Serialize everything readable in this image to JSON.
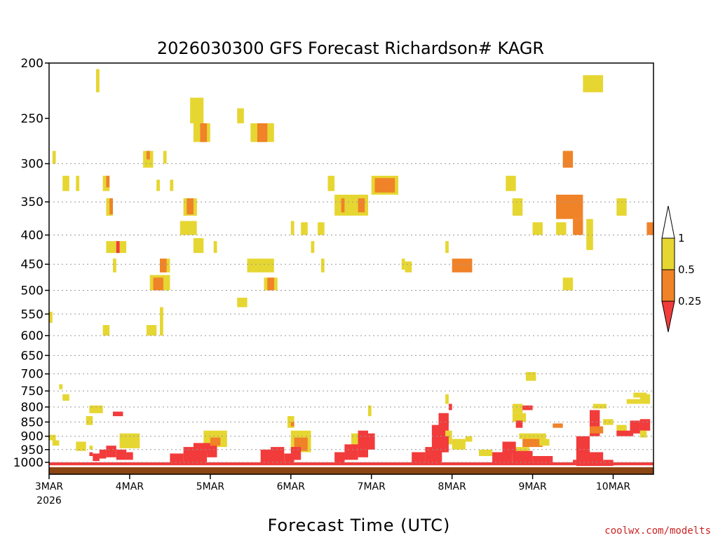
{
  "chart_data": {
    "type": "heatmap",
    "title": "2026030300 GFS Forecast Richardson# KAGR",
    "xlabel": "Forecast Time (UTC)",
    "ylabel": "",
    "credit": "coolwx.com/modelts",
    "x_start_hour": 0,
    "x_end_hour": 180,
    "x_ticks": [
      {
        "label": "3MAR",
        "hour": 0
      },
      {
        "label": "4MAR",
        "hour": 24
      },
      {
        "label": "5MAR",
        "hour": 48
      },
      {
        "label": "6MAR",
        "hour": 72
      },
      {
        "label": "7MAR",
        "hour": 96
      },
      {
        "label": "8MAR",
        "hour": 120
      },
      {
        "label": "9MAR",
        "hour": 144
      },
      {
        "label": "10MAR",
        "hour": 168
      }
    ],
    "x_year_label": "2026",
    "y_unit": "hPa",
    "y_ticks": [
      200,
      250,
      300,
      350,
      400,
      450,
      500,
      550,
      600,
      650,
      700,
      750,
      800,
      850,
      900,
      950,
      1000
    ],
    "y_gridlines": [
      300,
      350,
      400,
      450,
      500,
      550,
      600,
      650,
      700,
      750,
      800,
      850,
      900,
      950,
      1000
    ],
    "surface_pressure_hpa": 1020,
    "surface_color": "#8b4513",
    "colorbar": {
      "thresholds": [
        "1",
        "0.5",
        "0.25"
      ],
      "bins": [
        {
          "label": "Ri < 0.25",
          "color": "#f23b3b"
        },
        {
          "label": "0.25 <= Ri < 0.5",
          "color": "#f08228"
        },
        {
          "label": "0.5 <= Ri < 1",
          "color": "#e6d632"
        },
        {
          "label": "Ri >= 1",
          "color": "#ffffff"
        }
      ]
    },
    "category_colors": {
      "y": "#e6d632",
      "o": "#f08228",
      "r": "#f23b3b"
    },
    "cells": [
      {
        "c": "y",
        "h0": 14,
        "h1": 15,
        "p0": 205,
        "p1": 225
      },
      {
        "c": "y",
        "h0": 42,
        "h1": 46,
        "p0": 230,
        "p1": 255
      },
      {
        "c": "y",
        "h0": 43,
        "h1": 48,
        "p0": 255,
        "p1": 275
      },
      {
        "c": "o",
        "h0": 45,
        "h1": 47,
        "p0": 255,
        "p1": 275
      },
      {
        "c": "y",
        "h0": 56,
        "h1": 58,
        "p0": 240,
        "p1": 255
      },
      {
        "c": "y",
        "h0": 60,
        "h1": 67,
        "p0": 255,
        "p1": 275
      },
      {
        "c": "o",
        "h0": 62,
        "h1": 65,
        "p0": 255,
        "p1": 275
      },
      {
        "c": "y",
        "h0": 159,
        "h1": 165,
        "p0": 210,
        "p1": 225
      },
      {
        "c": "y",
        "h0": 1,
        "h1": 2,
        "p0": 285,
        "p1": 300
      },
      {
        "c": "y",
        "h0": 28,
        "h1": 31,
        "p0": 285,
        "p1": 305
      },
      {
        "c": "o",
        "h0": 29,
        "h1": 30,
        "p0": 285,
        "p1": 295
      },
      {
        "c": "y",
        "h0": 34,
        "h1": 35,
        "p0": 285,
        "p1": 300
      },
      {
        "c": "o",
        "h0": 153,
        "h1": 156,
        "p0": 285,
        "p1": 305
      },
      {
        "c": "y",
        "h0": 4,
        "h1": 6,
        "p0": 315,
        "p1": 335
      },
      {
        "c": "y",
        "h0": 8,
        "h1": 9,
        "p0": 315,
        "p1": 335
      },
      {
        "c": "y",
        "h0": 16,
        "h1": 18,
        "p0": 315,
        "p1": 335
      },
      {
        "c": "o",
        "h0": 17,
        "h1": 18,
        "p0": 315,
        "p1": 330
      },
      {
        "c": "y",
        "h0": 32,
        "h1": 33,
        "p0": 320,
        "p1": 335
      },
      {
        "c": "y",
        "h0": 36,
        "h1": 37,
        "p0": 320,
        "p1": 335
      },
      {
        "c": "y",
        "h0": 83,
        "h1": 85,
        "p0": 315,
        "p1": 335
      },
      {
        "c": "y",
        "h0": 96,
        "h1": 104,
        "p0": 315,
        "p1": 340
      },
      {
        "c": "o",
        "h0": 97,
        "h1": 103,
        "p0": 318,
        "p1": 337
      },
      {
        "c": "y",
        "h0": 136,
        "h1": 139,
        "p0": 315,
        "p1": 335
      },
      {
        "c": "y",
        "h0": 17,
        "h1": 19,
        "p0": 345,
        "p1": 370
      },
      {
        "c": "o",
        "h0": 18,
        "h1": 19,
        "p0": 345,
        "p1": 368
      },
      {
        "c": "y",
        "h0": 40,
        "h1": 44,
        "p0": 345,
        "p1": 370
      },
      {
        "c": "o",
        "h0": 41,
        "h1": 43,
        "p0": 345,
        "p1": 368
      },
      {
        "c": "y",
        "h0": 85,
        "h1": 95,
        "p0": 340,
        "p1": 370
      },
      {
        "c": "o",
        "h0": 87,
        "h1": 88,
        "p0": 345,
        "p1": 365
      },
      {
        "c": "o",
        "h0": 92,
        "h1": 94,
        "p0": 345,
        "p1": 365
      },
      {
        "c": "y",
        "h0": 138,
        "h1": 141,
        "p0": 345,
        "p1": 370
      },
      {
        "c": "o",
        "h0": 151,
        "h1": 159,
        "p0": 340,
        "p1": 375
      },
      {
        "c": "y",
        "h0": 169,
        "h1": 172,
        "p0": 345,
        "p1": 370
      },
      {
        "c": "y",
        "h0": 39,
        "h1": 44,
        "p0": 378,
        "p1": 400
      },
      {
        "c": "y",
        "h0": 72,
        "h1": 73,
        "p0": 378,
        "p1": 400
      },
      {
        "c": "y",
        "h0": 75,
        "h1": 77,
        "p0": 380,
        "p1": 400
      },
      {
        "c": "y",
        "h0": 80,
        "h1": 82,
        "p0": 380,
        "p1": 400
      },
      {
        "c": "y",
        "h0": 144,
        "h1": 147,
        "p0": 380,
        "p1": 400
      },
      {
        "c": "y",
        "h0": 151,
        "h1": 154,
        "p0": 380,
        "p1": 400
      },
      {
        "c": "o",
        "h0": 156,
        "h1": 159,
        "p0": 375,
        "p1": 400
      },
      {
        "c": "y",
        "h0": 160,
        "h1": 162,
        "p0": 375,
        "p1": 425
      },
      {
        "c": "o",
        "h0": 178,
        "h1": 180,
        "p0": 380,
        "p1": 400
      },
      {
        "c": "y",
        "h0": 17,
        "h1": 23,
        "p0": 410,
        "p1": 430
      },
      {
        "c": "r",
        "h0": 20,
        "h1": 21,
        "p0": 410,
        "p1": 430
      },
      {
        "c": "y",
        "h0": 43,
        "h1": 46,
        "p0": 405,
        "p1": 430
      },
      {
        "c": "y",
        "h0": 49,
        "h1": 50,
        "p0": 410,
        "p1": 430
      },
      {
        "c": "y",
        "h0": 78,
        "h1": 79,
        "p0": 410,
        "p1": 430
      },
      {
        "c": "y",
        "h0": 118,
        "h1": 119,
        "p0": 410,
        "p1": 430
      },
      {
        "c": "y",
        "h0": 59,
        "h1": 67,
        "p0": 440,
        "p1": 465
      },
      {
        "c": "y",
        "h0": 33,
        "h1": 36,
        "p0": 440,
        "p1": 465
      },
      {
        "c": "o",
        "h0": 33,
        "h1": 35,
        "p0": 440,
        "p1": 465
      },
      {
        "c": "y",
        "h0": 19,
        "h1": 20,
        "p0": 440,
        "p1": 465
      },
      {
        "c": "y",
        "h0": 81,
        "h1": 82,
        "p0": 440,
        "p1": 465
      },
      {
        "c": "y",
        "h0": 105,
        "h1": 106,
        "p0": 440,
        "p1": 460
      },
      {
        "c": "y",
        "h0": 106,
        "h1": 108,
        "p0": 445,
        "p1": 465
      },
      {
        "c": "o",
        "h0": 120,
        "h1": 126,
        "p0": 440,
        "p1": 465
      },
      {
        "c": "y",
        "h0": 30,
        "h1": 36,
        "p0": 470,
        "p1": 500
      },
      {
        "c": "o",
        "h0": 31,
        "h1": 34,
        "p0": 475,
        "p1": 500
      },
      {
        "c": "y",
        "h0": 64,
        "h1": 68,
        "p0": 475,
        "p1": 500
      },
      {
        "c": "o",
        "h0": 65,
        "h1": 67,
        "p0": 475,
        "p1": 500
      },
      {
        "c": "y",
        "h0": 153,
        "h1": 156,
        "p0": 475,
        "p1": 500
      },
      {
        "c": "y",
        "h0": 56,
        "h1": 59,
        "p0": 515,
        "p1": 535
      },
      {
        "c": "y",
        "h0": 0,
        "h1": 1,
        "p0": 545,
        "p1": 570
      },
      {
        "c": "y",
        "h0": 16,
        "h1": 18,
        "p0": 575,
        "p1": 600
      },
      {
        "c": "y",
        "h0": 29,
        "h1": 32,
        "p0": 575,
        "p1": 600
      },
      {
        "c": "y",
        "h0": 33,
        "h1": 34,
        "p0": 535,
        "p1": 600
      },
      {
        "c": "y",
        "h0": 3,
        "h1": 4,
        "p0": 730,
        "p1": 745
      },
      {
        "c": "y",
        "h0": 4,
        "h1": 6,
        "p0": 760,
        "p1": 780
      },
      {
        "c": "y",
        "h0": 142,
        "h1": 145,
        "p0": 695,
        "p1": 720
      },
      {
        "c": "y",
        "h0": 12,
        "h1": 16,
        "p0": 795,
        "p1": 820
      },
      {
        "c": "y",
        "h0": 11,
        "h1": 13,
        "p0": 830,
        "p1": 860
      },
      {
        "c": "r",
        "h0": 19,
        "h1": 22,
        "p0": 815,
        "p1": 830
      },
      {
        "c": "y",
        "h0": 95,
        "h1": 96,
        "p0": 795,
        "p1": 830
      },
      {
        "c": "y",
        "h0": 118,
        "h1": 119,
        "p0": 760,
        "p1": 790
      },
      {
        "c": "r",
        "h0": 119,
        "h1": 120,
        "p0": 790,
        "p1": 810
      },
      {
        "c": "y",
        "h0": 138,
        "h1": 141,
        "p0": 790,
        "p1": 820
      },
      {
        "c": "r",
        "h0": 141,
        "h1": 144,
        "p0": 795,
        "p1": 810
      },
      {
        "c": "y",
        "h0": 162,
        "h1": 166,
        "p0": 790,
        "p1": 805
      },
      {
        "c": "y",
        "h0": 176,
        "h1": 179,
        "p0": 760,
        "p1": 790
      },
      {
        "c": "y",
        "h0": 172,
        "h1": 176,
        "p0": 775,
        "p1": 790
      },
      {
        "c": "y",
        "h0": 174,
        "h1": 178,
        "p0": 755,
        "p1": 770
      },
      {
        "c": "y",
        "h0": 138,
        "h1": 142,
        "p0": 820,
        "p1": 850
      },
      {
        "c": "r",
        "h0": 139,
        "h1": 141,
        "p0": 845,
        "p1": 870
      },
      {
        "c": "o",
        "h0": 150,
        "h1": 153,
        "p0": 855,
        "p1": 870
      },
      {
        "c": "r",
        "h0": 161,
        "h1": 164,
        "p0": 810,
        "p1": 900
      },
      {
        "c": "y",
        "h0": 165,
        "h1": 168,
        "p0": 840,
        "p1": 860
      },
      {
        "c": "y",
        "h0": 169,
        "h1": 172,
        "p0": 860,
        "p1": 890
      },
      {
        "c": "r",
        "h0": 169,
        "h1": 174,
        "p0": 880,
        "p1": 900
      },
      {
        "c": "r",
        "h0": 173,
        "h1": 176,
        "p0": 845,
        "p1": 890
      },
      {
        "c": "r",
        "h0": 176,
        "h1": 179,
        "p0": 840,
        "p1": 880
      },
      {
        "c": "y",
        "h0": 176,
        "h1": 178,
        "p0": 880,
        "p1": 905
      },
      {
        "c": "o",
        "h0": 161,
        "h1": 165,
        "p0": 865,
        "p1": 890
      },
      {
        "c": "y",
        "h0": 0,
        "h1": 2,
        "p0": 895,
        "p1": 915
      },
      {
        "c": "y",
        "h0": 1,
        "h1": 3,
        "p0": 915,
        "p1": 935
      },
      {
        "c": "y",
        "h0": 8,
        "h1": 11,
        "p0": 920,
        "p1": 955
      },
      {
        "c": "y",
        "h0": 12,
        "h1": 13,
        "p0": 935,
        "p1": 950
      },
      {
        "c": "r",
        "h0": 12,
        "h1": 13,
        "p0": 960,
        "p1": 975
      },
      {
        "c": "y",
        "h0": 21,
        "h1": 27,
        "p0": 890,
        "p1": 945
      },
      {
        "c": "y",
        "h0": 46,
        "h1": 53,
        "p0": 880,
        "p1": 940
      },
      {
        "c": "o",
        "h0": 48,
        "h1": 51,
        "p0": 905,
        "p1": 935
      },
      {
        "c": "y",
        "h0": 72,
        "h1": 78,
        "p0": 880,
        "p1": 960
      },
      {
        "c": "o",
        "h0": 73,
        "h1": 77,
        "p0": 905,
        "p1": 955
      },
      {
        "c": "y",
        "h0": 71,
        "h1": 73,
        "p0": 830,
        "p1": 870
      },
      {
        "c": "o",
        "h0": 72,
        "h1": 73,
        "p0": 850,
        "p1": 865
      },
      {
        "c": "y",
        "h0": 90,
        "h1": 94,
        "p0": 890,
        "p1": 940
      },
      {
        "c": "o",
        "h0": 92,
        "h1": 94,
        "p0": 900,
        "p1": 935
      },
      {
        "c": "y",
        "h0": 116,
        "h1": 120,
        "p0": 880,
        "p1": 930
      },
      {
        "c": "y",
        "h0": 120,
        "h1": 124,
        "p0": 910,
        "p1": 950
      },
      {
        "c": "y",
        "h0": 124,
        "h1": 126,
        "p0": 900,
        "p1": 920
      },
      {
        "c": "o",
        "h0": 141,
        "h1": 147,
        "p0": 900,
        "p1": 940
      },
      {
        "c": "y",
        "h0": 140,
        "h1": 148,
        "p0": 890,
        "p1": 910
      },
      {
        "c": "y",
        "h0": 146,
        "h1": 149,
        "p0": 910,
        "p1": 935
      },
      {
        "c": "y",
        "h0": 138,
        "h1": 143,
        "p0": 940,
        "p1": 960
      },
      {
        "c": "y",
        "h0": 128,
        "h1": 132,
        "p0": 950,
        "p1": 975
      },
      {
        "c": "r",
        "h0": 17,
        "h1": 20,
        "p0": 935,
        "p1": 980
      },
      {
        "c": "r",
        "h0": 15,
        "h1": 17,
        "p0": 950,
        "p1": 985
      },
      {
        "c": "r",
        "h0": 20,
        "h1": 23,
        "p0": 950,
        "p1": 990
      },
      {
        "c": "r",
        "h0": 23,
        "h1": 25,
        "p0": 960,
        "p1": 990
      },
      {
        "c": "r",
        "h0": 13,
        "h1": 15,
        "p0": 965,
        "p1": 995
      },
      {
        "c": "r",
        "h0": 40,
        "h1": 47,
        "p0": 940,
        "p1": 1000
      },
      {
        "c": "r",
        "h0": 43,
        "h1": 48,
        "p0": 925,
        "p1": 960
      },
      {
        "c": "r",
        "h0": 36,
        "h1": 40,
        "p0": 965,
        "p1": 1000
      },
      {
        "c": "r",
        "h0": 47,
        "h1": 50,
        "p0": 935,
        "p1": 980
      },
      {
        "c": "r",
        "h0": 63,
        "h1": 70,
        "p0": 950,
        "p1": 1000
      },
      {
        "c": "r",
        "h0": 66,
        "h1": 70,
        "p0": 940,
        "p1": 960
      },
      {
        "c": "r",
        "h0": 70,
        "h1": 73,
        "p0": 965,
        "p1": 1000
      },
      {
        "c": "r",
        "h0": 72,
        "h1": 75,
        "p0": 940,
        "p1": 990
      },
      {
        "c": "r",
        "h0": 88,
        "h1": 92,
        "p0": 930,
        "p1": 990
      },
      {
        "c": "r",
        "h0": 92,
        "h1": 95,
        "p0": 880,
        "p1": 980
      },
      {
        "c": "r",
        "h0": 94,
        "h1": 97,
        "p0": 890,
        "p1": 950
      },
      {
        "c": "r",
        "h0": 85,
        "h1": 88,
        "p0": 960,
        "p1": 1000
      },
      {
        "c": "r",
        "h0": 112,
        "h1": 117,
        "p0": 940,
        "p1": 1000
      },
      {
        "c": "r",
        "h0": 114,
        "h1": 118,
        "p0": 860,
        "p1": 960
      },
      {
        "c": "r",
        "h0": 116,
        "h1": 119,
        "p0": 820,
        "p1": 880
      },
      {
        "c": "r",
        "h0": 108,
        "h1": 112,
        "p0": 960,
        "p1": 1000
      },
      {
        "c": "r",
        "h0": 117,
        "h1": 119,
        "p0": 900,
        "p1": 960
      },
      {
        "c": "r",
        "h0": 132,
        "h1": 138,
        "p0": 960,
        "p1": 1005
      },
      {
        "c": "r",
        "h0": 135,
        "h1": 139,
        "p0": 920,
        "p1": 965
      },
      {
        "c": "r",
        "h0": 138,
        "h1": 144,
        "p0": 955,
        "p1": 1010
      },
      {
        "c": "r",
        "h0": 144,
        "h1": 150,
        "p0": 975,
        "p1": 1010
      },
      {
        "c": "r",
        "h0": 157,
        "h1": 165,
        "p0": 960,
        "p1": 1015
      },
      {
        "c": "r",
        "h0": 157,
        "h1": 161,
        "p0": 900,
        "p1": 960
      },
      {
        "c": "r",
        "h0": 165,
        "h1": 168,
        "p0": 990,
        "p1": 1015
      },
      {
        "c": "r",
        "h0": 156,
        "h1": 158,
        "p0": 990,
        "p1": 1005
      },
      {
        "c": "r",
        "h0": 0,
        "h1": 180,
        "p0": 1000,
        "p1": 1012
      }
    ]
  }
}
